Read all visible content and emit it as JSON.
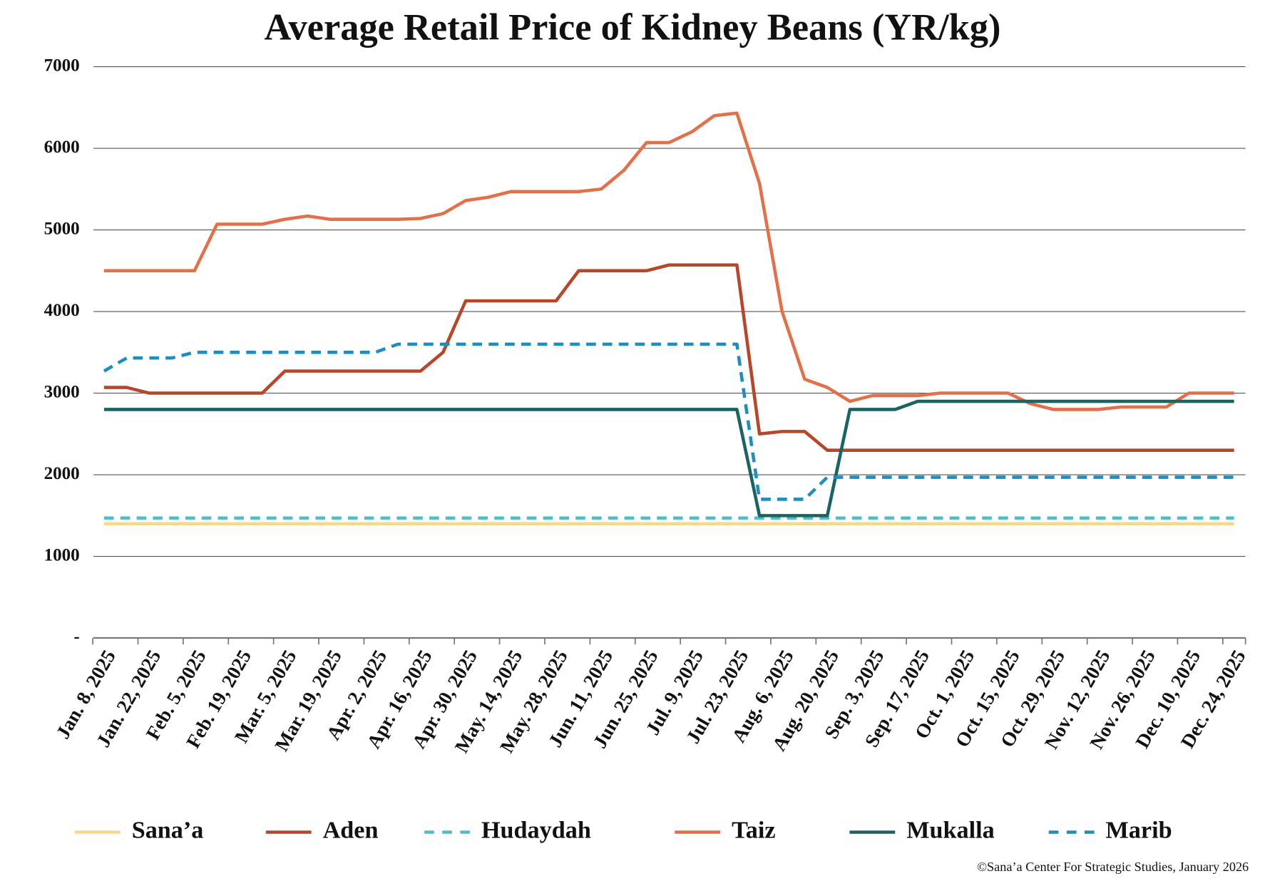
{
  "chart_data": {
    "type": "line",
    "title": "Average Retail Price of Kidney Beans (YR/kg)",
    "x": [
      "Jan. 8, 2025",
      null,
      "Jan. 22, 2025",
      null,
      "Feb. 5, 2025",
      null,
      "Feb. 19, 2025",
      null,
      "Mar. 5, 2025",
      null,
      "Mar. 19, 2025",
      null,
      "Apr. 2, 2025",
      null,
      "Apr. 16, 2025",
      null,
      "Apr. 30, 2025",
      null,
      "May. 14, 2025",
      null,
      "May. 28, 2025",
      null,
      "Jun. 11, 2025",
      null,
      "Jun. 25, 2025",
      null,
      "Jul. 9, 2025",
      null,
      "Jul. 23, 2025",
      null,
      "Aug. 6, 2025",
      null,
      "Aug. 20, 2025",
      null,
      "Sep. 3, 2025",
      null,
      "Sep. 17, 2025",
      null,
      "Oct. 1, 2025",
      null,
      "Oct. 15, 2025",
      null,
      "Oct. 29, 2025",
      null,
      "Nov. 12, 2025",
      null,
      "Nov. 26, 2025",
      null,
      "Dec. 10, 2025",
      null,
      "Dec. 24, 2025"
    ],
    "series": [
      {
        "name": "Sana’a",
        "color": "#f7d98b",
        "style": "solid",
        "values": [
          1400,
          1400,
          1400,
          1400,
          1400,
          1400,
          1400,
          1400,
          1400,
          1400,
          1400,
          1400,
          1400,
          1400,
          1400,
          1400,
          1400,
          1400,
          1400,
          1400,
          1400,
          1400,
          1400,
          1400,
          1400,
          1400,
          1400,
          1400,
          1400,
          1400,
          1400,
          1400,
          1400,
          1400,
          1400,
          1400,
          1400,
          1400,
          1400,
          1400,
          1400,
          1400,
          1400,
          1400,
          1400,
          1400,
          1400,
          1400,
          1400,
          1400,
          1400
        ]
      },
      {
        "name": "Aden",
        "color": "#b5472b",
        "style": "solid",
        "values": [
          3070,
          3070,
          3000,
          3000,
          3000,
          3000,
          3000,
          3000,
          3270,
          3270,
          3270,
          3270,
          3270,
          3270,
          3270,
          3500,
          4130,
          4130,
          4130,
          4130,
          4130,
          4500,
          4500,
          4500,
          4500,
          4570,
          4570,
          4570,
          4570,
          2500,
          2530,
          2530,
          2300,
          2300,
          2300,
          2300,
          2300,
          2300,
          2300,
          2300,
          2300,
          2300,
          2300,
          2300,
          2300,
          2300,
          2300,
          2300,
          2300,
          2300,
          2300
        ]
      },
      {
        "name": "Hudaydah",
        "color": "#4dbfc8",
        "style": "dashed",
        "values": [
          1470,
          1470,
          1470,
          1470,
          1470,
          1470,
          1470,
          1470,
          1470,
          1470,
          1470,
          1470,
          1470,
          1470,
          1470,
          1470,
          1470,
          1470,
          1470,
          1470,
          1470,
          1470,
          1470,
          1470,
          1470,
          1470,
          1470,
          1470,
          1470,
          1470,
          1470,
          1470,
          1470,
          1470,
          1470,
          1470,
          1470,
          1470,
          1470,
          1470,
          1470,
          1470,
          1470,
          1470,
          1470,
          1470,
          1470,
          1470,
          1470,
          1470,
          1470
        ]
      },
      {
        "name": "Taiz",
        "color": "#e0714a",
        "style": "solid",
        "values": [
          4500,
          4500,
          4500,
          4500,
          4500,
          5070,
          5070,
          5070,
          5130,
          5170,
          5130,
          5130,
          5130,
          5130,
          5140,
          5200,
          5360,
          5400,
          5470,
          5470,
          5470,
          5470,
          5500,
          5730,
          6070,
          6070,
          6200,
          6400,
          6430,
          5570,
          4000,
          3170,
          3070,
          2900,
          2970,
          2970,
          2970,
          3000,
          3000,
          3000,
          3000,
          2870,
          2800,
          2800,
          2800,
          2830,
          2830,
          2830,
          3000,
          3000,
          3000
        ]
      },
      {
        "name": "Mukalla",
        "color": "#1a6464",
        "style": "solid",
        "values": [
          2800,
          2800,
          2800,
          2800,
          2800,
          2800,
          2800,
          2800,
          2800,
          2800,
          2800,
          2800,
          2800,
          2800,
          2800,
          2800,
          2800,
          2800,
          2800,
          2800,
          2800,
          2800,
          2800,
          2800,
          2800,
          2800,
          2800,
          2800,
          2800,
          1500,
          1500,
          1500,
          1500,
          2800,
          2800,
          2800,
          2900,
          2900,
          2900,
          2900,
          2900,
          2900,
          2900,
          2900,
          2900,
          2900,
          2900,
          2900,
          2900,
          2900,
          2900
        ]
      },
      {
        "name": "Marib",
        "color": "#1f8dc0",
        "style": "dashed",
        "values": [
          3270,
          3430,
          3430,
          3430,
          3500,
          3500,
          3500,
          3500,
          3500,
          3500,
          3500,
          3500,
          3500,
          3600,
          3600,
          3600,
          3600,
          3600,
          3600,
          3600,
          3600,
          3600,
          3600,
          3600,
          3600,
          3600,
          3600,
          3600,
          3600,
          1700,
          1700,
          1700,
          1970,
          1970,
          1970,
          1970,
          1970,
          1970,
          1970,
          1970,
          1970,
          1970,
          1970,
          1970,
          1970,
          1970,
          1970,
          1970,
          1970,
          1970,
          1970
        ]
      }
    ],
    "ylim": [
      0,
      7000
    ],
    "yticks": [
      {
        "value": 0,
        "label": "-"
      },
      1000,
      2000,
      3000,
      4000,
      5000,
      6000,
      7000
    ],
    "grid": true,
    "legend": "bottom",
    "source": "©Sana’a Center For Strategic Studies, January 2026"
  }
}
